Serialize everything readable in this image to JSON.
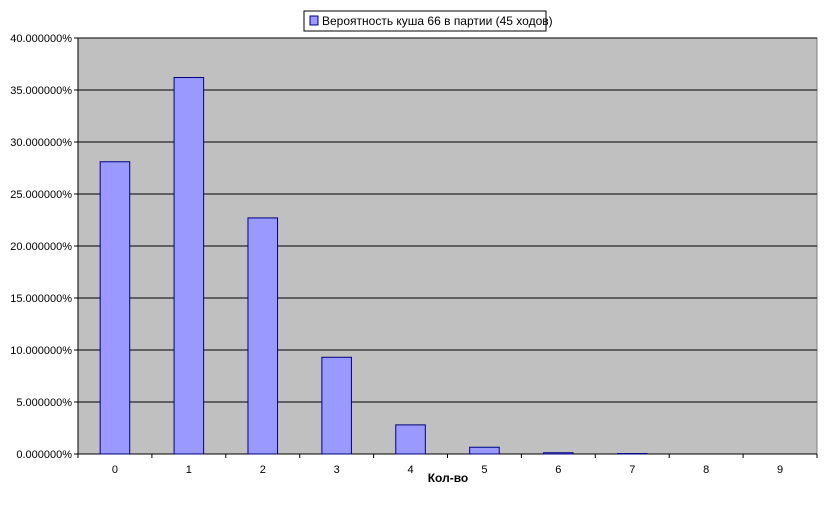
{
  "chart_data": {
    "type": "bar",
    "title": "",
    "xlabel": "Кол-во",
    "ylabel": "",
    "categories": [
      "0",
      "1",
      "2",
      "3",
      "4",
      "5",
      "6",
      "7",
      "8",
      "9"
    ],
    "series": [
      {
        "name": "Вероятность куша 66 в партии (45 ходов)",
        "values": [
          28.1,
          36.2,
          22.7,
          9.3,
          2.8,
          0.65,
          0.12,
          0.01,
          0.0,
          0.0
        ]
      }
    ],
    "ylim": [
      0,
      40
    ],
    "yticks": [
      0,
      5,
      10,
      15,
      20,
      25,
      30,
      35,
      40
    ],
    "ytick_labels": [
      "0.000000%",
      "5.000000%",
      "10.000000%",
      "15.000000%",
      "20.000000%",
      "25.000000%",
      "30.000000%",
      "35.000000%",
      "40.000000%"
    ],
    "grid": true,
    "legend_position": "top",
    "colors": {
      "bar_fill": "#9999ff",
      "bar_stroke": "#000080",
      "plot_background": "#c0c0c0",
      "gridline": "#000000"
    }
  }
}
